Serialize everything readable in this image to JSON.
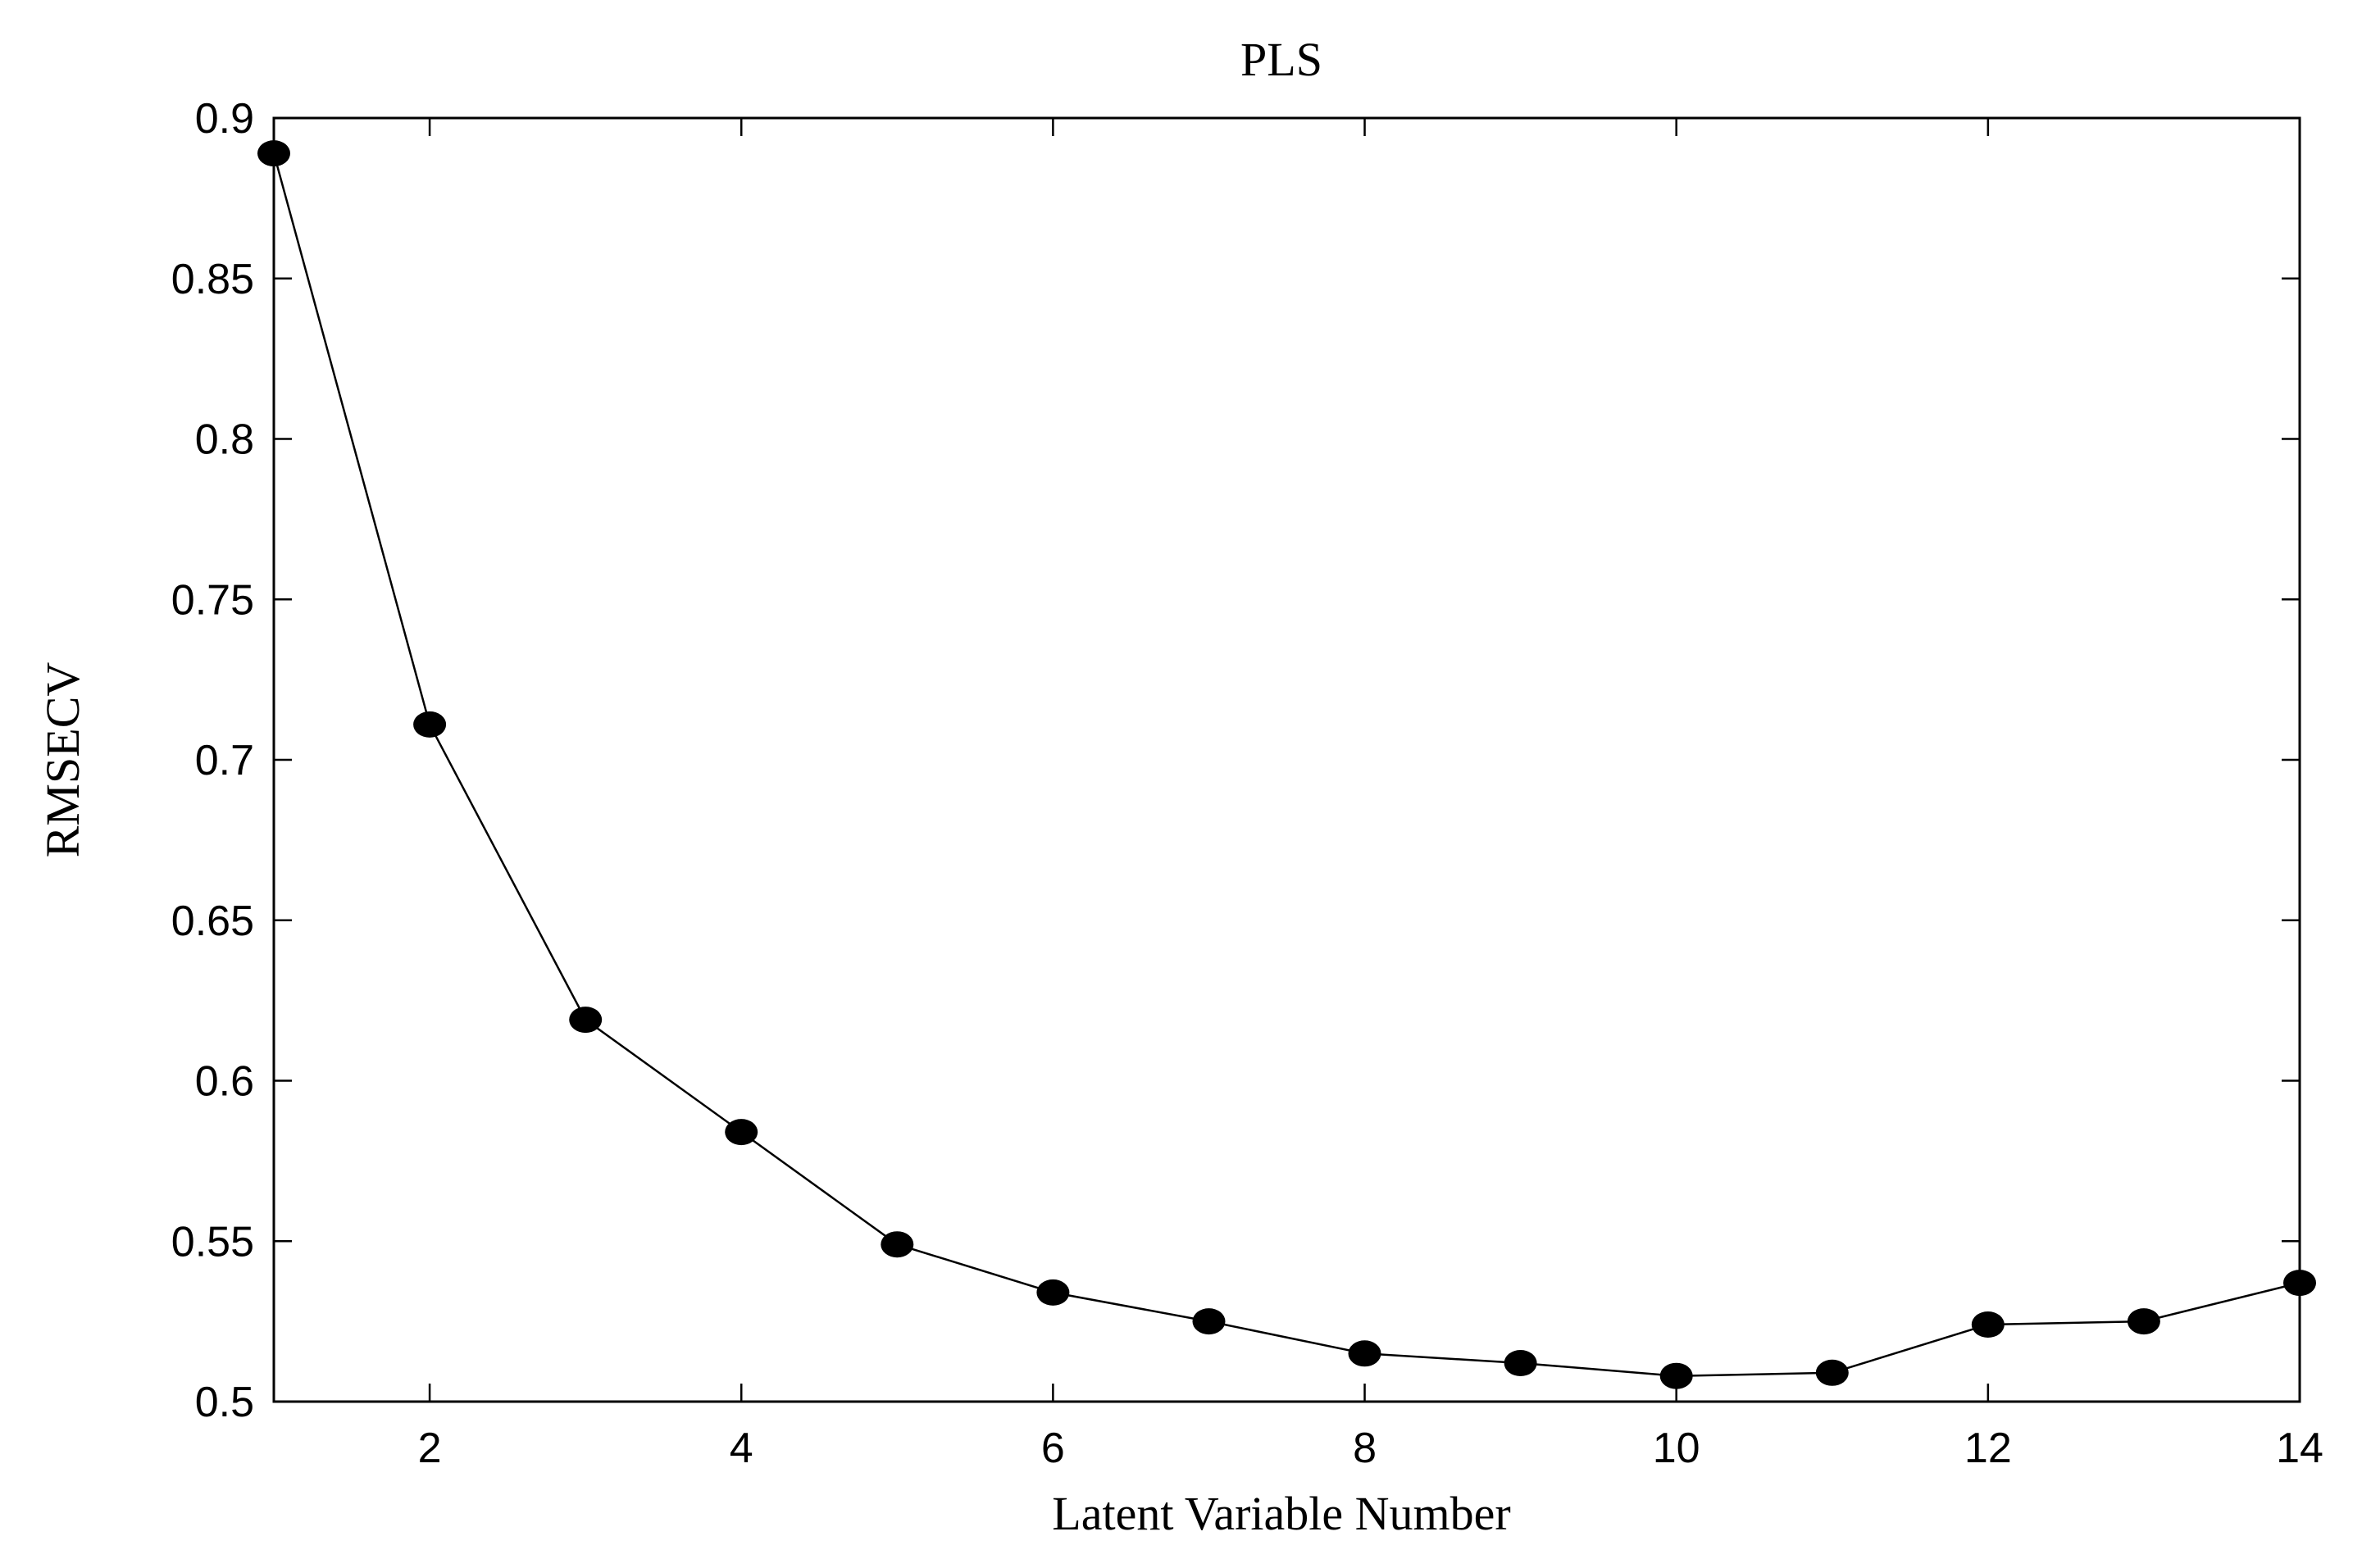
{
  "chart_data": {
    "type": "line",
    "title": "PLS",
    "xlabel": "Latent Variable Number",
    "ylabel": "RMSECV",
    "x": [
      1,
      2,
      3,
      4,
      5,
      6,
      7,
      8,
      9,
      10,
      11,
      12,
      13,
      14
    ],
    "series": [
      {
        "values": [
          0.889,
          0.711,
          0.619,
          0.584,
          0.549,
          0.534,
          0.525,
          0.515,
          0.512,
          0.508,
          0.509,
          0.524,
          0.525,
          0.537
        ]
      }
    ],
    "xlim": [
      1,
      14
    ],
    "ylim": [
      0.5,
      0.9
    ],
    "xticks": [
      2,
      4,
      6,
      8,
      10,
      12,
      14
    ],
    "xtick_labels": [
      "2",
      "4",
      "6",
      "8",
      "10",
      "12",
      "14"
    ],
    "yticks": [
      0.5,
      0.55,
      0.6,
      0.65,
      0.7,
      0.75,
      0.8,
      0.85,
      0.9
    ],
    "ytick_labels": [
      "0.5",
      "0.55",
      "0.6",
      "0.65",
      "0.7",
      "0.75",
      "0.8",
      "0.85",
      "0.9"
    ],
    "grid": false,
    "legend": "none",
    "colors": {
      "line": "#000000",
      "marker": "#000000",
      "axes": "#000000",
      "background": "#ffffff"
    }
  }
}
